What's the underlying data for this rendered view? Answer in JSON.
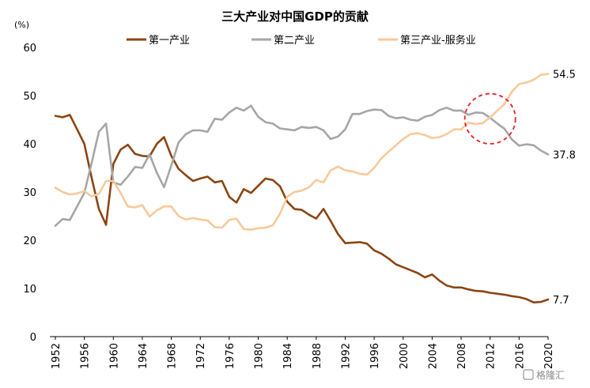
{
  "chart_data": {
    "type": "line",
    "title": "三大产业对中国GDP的贡献",
    "y_unit": "(%)",
    "xlabel": "",
    "ylabel": "",
    "xlim": [
      1952,
      2020
    ],
    "ylim": [
      0,
      60
    ],
    "y_ticks": [
      0,
      10,
      20,
      30,
      40,
      50,
      60
    ],
    "x_ticks": [
      1952,
      1956,
      1960,
      1964,
      1968,
      1972,
      1976,
      1980,
      1984,
      1988,
      1992,
      1996,
      2000,
      2004,
      2008,
      2012,
      2016,
      2020
    ],
    "grid": false,
    "legend_position": "top",
    "series": [
      {
        "name": "第一产业",
        "color": "#8B4513",
        "end_label": "7.7",
        "x": [
          1952,
          1953,
          1954,
          1955,
          1956,
          1957,
          1958,
          1959,
          1960,
          1961,
          1962,
          1963,
          1964,
          1965,
          1966,
          1967,
          1968,
          1969,
          1970,
          1971,
          1972,
          1973,
          1974,
          1975,
          1976,
          1977,
          1978,
          1979,
          1980,
          1981,
          1982,
          1983,
          1984,
          1985,
          1986,
          1987,
          1988,
          1989,
          1990,
          1991,
          1992,
          1993,
          1994,
          1995,
          1996,
          1997,
          1998,
          1999,
          2000,
          2001,
          2002,
          2003,
          2004,
          2005,
          2006,
          2007,
          2008,
          2009,
          2010,
          2011,
          2012,
          2013,
          2014,
          2015,
          2016,
          2017,
          2018,
          2019,
          2020
        ],
        "values": [
          45.8,
          45.5,
          46.0,
          43.0,
          40.0,
          33.0,
          26.5,
          23.2,
          35.8,
          38.8,
          39.8,
          37.9,
          37.5,
          37.4,
          40.0,
          41.4,
          37.5,
          34.8,
          33.5,
          32.3,
          32.8,
          33.2,
          32.0,
          32.3,
          29.0,
          27.8,
          30.6,
          29.8,
          31.3,
          32.8,
          32.5,
          31.2,
          28.0,
          26.5,
          26.3,
          25.3,
          24.5,
          26.5,
          24.0,
          21.3,
          19.4,
          19.5,
          19.6,
          19.3,
          17.9,
          17.2,
          16.2,
          15.0,
          14.4,
          13.8,
          13.2,
          12.3,
          12.9,
          11.6,
          10.6,
          10.2,
          10.2,
          9.8,
          9.5,
          9.4,
          9.1,
          8.9,
          8.7,
          8.4,
          8.2,
          7.8,
          7.1,
          7.2,
          7.7
        ]
      },
      {
        "name": "第二产业",
        "color": "#A6A6A6",
        "end_label": "37.8",
        "x": [
          1952,
          1953,
          1954,
          1955,
          1956,
          1957,
          1958,
          1959,
          1960,
          1961,
          1962,
          1963,
          1964,
          1965,
          1966,
          1967,
          1968,
          1969,
          1970,
          1971,
          1972,
          1973,
          1974,
          1975,
          1976,
          1977,
          1978,
          1979,
          1980,
          1981,
          1982,
          1983,
          1984,
          1985,
          1986,
          1987,
          1988,
          1989,
          1990,
          1991,
          1992,
          1993,
          1994,
          1995,
          1996,
          1997,
          1998,
          1999,
          2000,
          2001,
          2002,
          2003,
          2004,
          2005,
          2006,
          2007,
          2008,
          2009,
          2010,
          2011,
          2012,
          2013,
          2014,
          2015,
          2016,
          2017,
          2018,
          2019,
          2020
        ],
        "values": [
          23.0,
          24.4,
          24.2,
          27.0,
          29.8,
          36.0,
          42.5,
          44.2,
          32.0,
          31.5,
          33.2,
          35.2,
          35.0,
          37.8,
          34.0,
          31.0,
          35.5,
          40.3,
          42.0,
          42.8,
          42.8,
          42.5,
          45.2,
          45.0,
          46.5,
          47.5,
          46.9,
          47.9,
          45.6,
          44.5,
          44.2,
          43.2,
          43.0,
          42.8,
          43.5,
          43.3,
          43.5,
          42.8,
          41.0,
          41.5,
          43.0,
          46.2,
          46.2,
          46.8,
          47.1,
          47.0,
          45.8,
          45.3,
          45.5,
          45.0,
          44.8,
          45.6,
          46.0,
          47.0,
          47.5,
          46.9,
          46.9,
          46.0,
          46.5,
          46.4,
          45.4,
          44.2,
          43.1,
          40.9,
          39.6,
          39.9,
          39.7,
          38.6,
          37.8
        ]
      },
      {
        "name": "第三产业-服务业",
        "color": "#F8C99A",
        "end_label": "54.5",
        "x": [
          1952,
          1953,
          1954,
          1955,
          1956,
          1957,
          1958,
          1959,
          1960,
          1961,
          1962,
          1963,
          1964,
          1965,
          1966,
          1967,
          1968,
          1969,
          1970,
          1971,
          1972,
          1973,
          1974,
          1975,
          1976,
          1977,
          1978,
          1979,
          1980,
          1981,
          1982,
          1983,
          1984,
          1985,
          1986,
          1987,
          1988,
          1989,
          1990,
          1991,
          1992,
          1993,
          1994,
          1995,
          1996,
          1997,
          1998,
          1999,
          2000,
          2001,
          2002,
          2003,
          2004,
          2005,
          2006,
          2007,
          2008,
          2009,
          2010,
          2011,
          2012,
          2013,
          2014,
          2015,
          2016,
          2017,
          2018,
          2019,
          2020
        ],
        "values": [
          30.9,
          30.0,
          29.5,
          29.7,
          30.2,
          29.1,
          29.6,
          32.3,
          32.3,
          29.8,
          27.0,
          26.8,
          27.3,
          24.9,
          26.2,
          27.0,
          27.0,
          25.0,
          24.3,
          24.6,
          24.3,
          24.1,
          22.7,
          22.6,
          24.2,
          24.5,
          22.3,
          22.2,
          22.5,
          22.6,
          23.1,
          25.5,
          29.0,
          30.0,
          30.3,
          31.0,
          32.5,
          32.0,
          34.5,
          35.3,
          34.5,
          34.3,
          33.8,
          33.6,
          35.0,
          37.0,
          38.4,
          39.7,
          41.0,
          42.0,
          42.2,
          41.8,
          41.2,
          41.4,
          42.0,
          43.0,
          43.0,
          44.4,
          44.1,
          44.3,
          45.5,
          46.9,
          48.3,
          50.8,
          52.4,
          52.7,
          53.3,
          54.3,
          54.5
        ]
      }
    ],
    "annotations": [
      {
        "type": "dashed-circle",
        "color": "#E02020",
        "center_x": 2012,
        "center_y": 45.2,
        "rx_years": 3.5,
        "ry_value": 5.2
      }
    ]
  },
  "watermark": "格隆汇"
}
